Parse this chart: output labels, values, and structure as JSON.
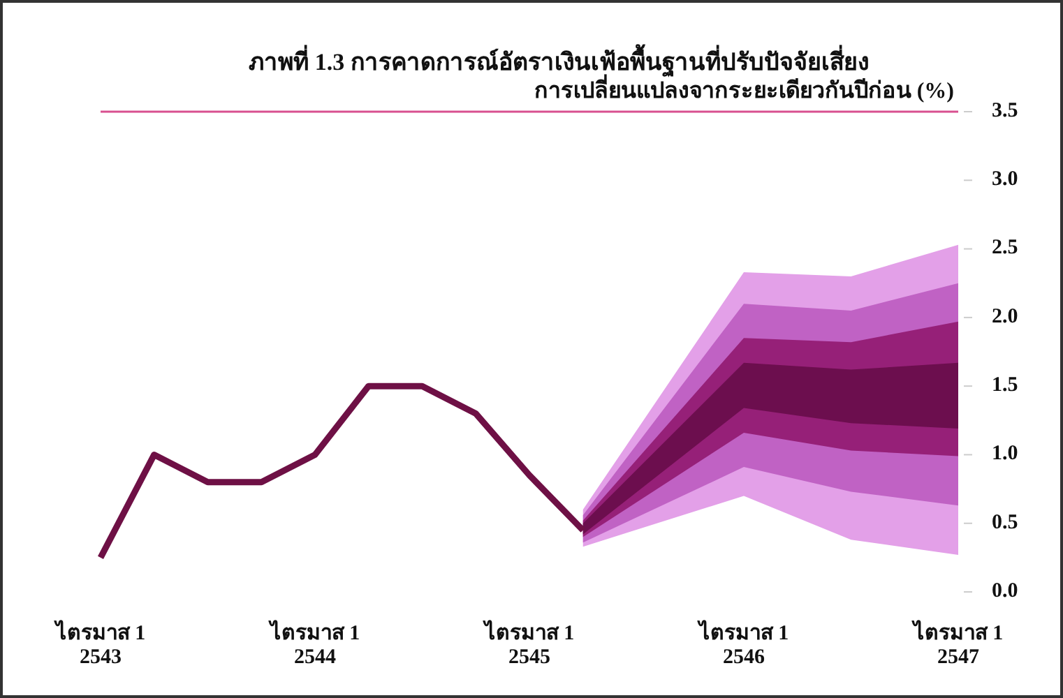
{
  "chart_data": {
    "type": "line",
    "title": "ภาพที่ 1.3  การคาดการณ์อัตราเงินเฟ้อพื้นฐานที่ปรับปัจจัยเสี่ยง",
    "ylabel": "การเปลี่ยนแปลงจากระยะเดียวกันปีก่อน (%)",
    "categories": [
      "ไตรมาส 1\n2543",
      null,
      null,
      null,
      "ไตรมาส 1\n2544",
      null,
      null,
      null,
      "ไตรมาส 1\n2545",
      null,
      null,
      null,
      "ไตรมาส 1\n2546",
      null,
      null,
      null,
      "ไตรมาส 1\n2547"
    ],
    "ylim": [
      0,
      3.5
    ],
    "yticks": [
      {
        "value": 0,
        "label": "0.0"
      },
      {
        "value": 0.5,
        "label": "0.5"
      },
      {
        "value": 1,
        "label": "1.0"
      },
      {
        "value": 1.5,
        "label": "1.5"
      },
      {
        "value": 2,
        "label": "2.0"
      },
      {
        "value": 2.5,
        "label": "2.5"
      },
      {
        "value": 3,
        "label": "3.0"
      },
      {
        "value": 3.5,
        "label": "3.5"
      }
    ],
    "grid": false,
    "ref_lines": [
      {
        "axis": "y",
        "value": 3.5,
        "color": "#d8508f"
      }
    ],
    "series": [
      {
        "color": "#e3a0e8",
        "values": [
          null,
          null,
          null,
          null,
          null,
          null,
          null,
          null,
          null,
          null,
          null,
          null,
          null,
          null,
          null,
          null,
          null
        ],
        "upper": [
          null,
          null,
          null,
          null,
          null,
          null,
          null,
          null,
          null,
          0.6,
          null,
          null,
          2.33,
          null,
          2.3,
          null,
          2.53
        ],
        "lower": [
          null,
          null,
          null,
          null,
          null,
          null,
          null,
          null,
          null,
          0.33,
          null,
          null,
          0.7,
          null,
          0.38,
          null,
          0.27
        ]
      },
      {
        "color": "#c062c4",
        "values": [
          null,
          null,
          null,
          null,
          null,
          null,
          null,
          null,
          null,
          null,
          null,
          null,
          null,
          null,
          null,
          null,
          null
        ],
        "upper": [
          null,
          null,
          null,
          null,
          null,
          null,
          null,
          null,
          null,
          0.56,
          null,
          null,
          2.1,
          null,
          2.05,
          null,
          2.25
        ],
        "lower": [
          null,
          null,
          null,
          null,
          null,
          null,
          null,
          null,
          null,
          0.36,
          null,
          null,
          0.91,
          null,
          0.73,
          null,
          0.63
        ]
      },
      {
        "color": "#962078",
        "values": [
          null,
          null,
          null,
          null,
          null,
          null,
          null,
          null,
          null,
          null,
          null,
          null,
          null,
          null,
          null,
          null,
          null
        ],
        "upper": [
          null,
          null,
          null,
          null,
          null,
          null,
          null,
          null,
          null,
          0.52,
          null,
          null,
          1.85,
          null,
          1.82,
          null,
          1.97
        ],
        "lower": [
          null,
          null,
          null,
          null,
          null,
          null,
          null,
          null,
          null,
          0.4,
          null,
          null,
          1.16,
          null,
          1.03,
          null,
          0.99
        ]
      },
      {
        "color": "#6c0e4e",
        "values": [
          null,
          null,
          null,
          null,
          null,
          null,
          null,
          null,
          null,
          null,
          null,
          null,
          null,
          null,
          null,
          null,
          null
        ],
        "upper": [
          null,
          null,
          null,
          null,
          null,
          null,
          null,
          null,
          null,
          0.5,
          null,
          null,
          1.67,
          null,
          1.62,
          null,
          1.67
        ],
        "lower": [
          null,
          null,
          null,
          null,
          null,
          null,
          null,
          null,
          null,
          0.42,
          null,
          null,
          1.34,
          null,
          1.23,
          null,
          1.19
        ]
      },
      {
        "color": "#6e1045",
        "values": [
          0.25,
          1.0,
          0.8,
          0.8,
          1.0,
          1.5,
          1.5,
          1.3,
          0.85,
          0.45,
          null,
          null,
          null,
          null,
          null,
          null,
          null
        ]
      }
    ]
  }
}
